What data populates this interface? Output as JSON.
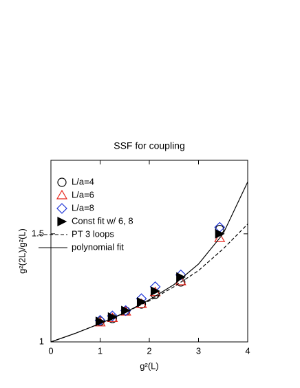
{
  "chart_data": {
    "type": "scatter",
    "title": "SSF for coupling",
    "x_label": "g²(L)",
    "y_label": "g²(2L)/g²(L)",
    "xlim": [
      0,
      4
    ],
    "ylim": [
      1,
      1.84
    ],
    "xticks": [
      0,
      1,
      2,
      3,
      4
    ],
    "yticks": [
      1,
      1.5
    ],
    "series": [
      {
        "name": "L/a=4",
        "color": "#000000",
        "marker": "circle",
        "x": [
          1,
          1.25,
          1.52,
          1.84,
          2.12,
          2.64,
          3.43
        ],
        "values": [
          1.096,
          1.108,
          1.143,
          1.175,
          1.22,
          1.277,
          1.52
        ]
      },
      {
        "name": "L/a=6",
        "color": "#e8261c",
        "marker": "triangle",
        "x": [
          1,
          1.25,
          1.52,
          1.84,
          2.12,
          2.64,
          3.43
        ],
        "values": [
          1.09,
          1.11,
          1.14,
          1.175,
          1.23,
          1.28,
          1.48
        ]
      },
      {
        "name": "L/a=8",
        "color": "#1f35d6",
        "marker": "diamond",
        "x": [
          1,
          1.25,
          1.52,
          1.84,
          2.12,
          2.64,
          3.43
        ],
        "values": [
          1.1,
          1.12,
          1.145,
          1.2,
          1.255,
          1.31,
          1.53
        ]
      },
      {
        "name": "Const fit w/ 6, 8",
        "color": "#000000",
        "marker": "right-triangle",
        "x": [
          1,
          1.25,
          1.52,
          1.84,
          2.12,
          2.64,
          3.43
        ],
        "values": [
          1.095,
          1.115,
          1.145,
          1.185,
          1.235,
          1.3,
          1.5
        ]
      },
      {
        "name": "PT 3 loops",
        "color": "#000000",
        "line": "dashed",
        "x": [
          0,
          0.5,
          1,
          1.5,
          2,
          2.5,
          3,
          3.5,
          4
        ],
        "values": [
          1,
          1.04,
          1.085,
          1.135,
          1.19,
          1.255,
          1.33,
          1.43,
          1.545
        ]
      },
      {
        "name": "polynomial fit",
        "color": "#000000",
        "line": "solid",
        "x": [
          0,
          0.5,
          1,
          1.5,
          2,
          2.5,
          3,
          3.5,
          4
        ],
        "values": [
          1,
          1.04,
          1.085,
          1.135,
          1.195,
          1.265,
          1.36,
          1.5,
          1.74
        ]
      }
    ]
  }
}
